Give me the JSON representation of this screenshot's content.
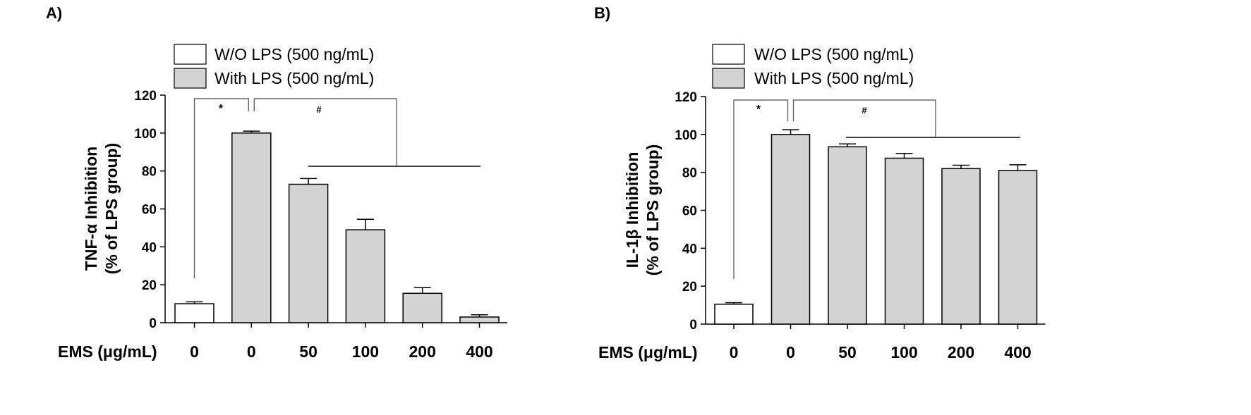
{
  "figure": {
    "panels": [
      {
        "label": "A)",
        "ylabel_line1": "TNF-α Inhibition",
        "ylabel_line2": "(% of LPS group)",
        "xaxis_title": "EMS (μg/mL)",
        "sig_left": "*",
        "sig_right": "#",
        "legend": [
          "W/O LPS (500 ng/mL)",
          "With LPS (500 ng/mL)"
        ]
      },
      {
        "label": "B)",
        "ylabel_line1": "IL-1β Inhibition",
        "ylabel_line2": "(% of LPS group)",
        "xaxis_title": "EMS (μg/mL)",
        "sig_left": "*",
        "sig_right": "#",
        "legend": [
          "W/O LPS (500 ng/mL)",
          "With LPS (500 ng/mL)"
        ]
      }
    ]
  },
  "colors": {
    "without_lps": "#ffffff",
    "with_lps": "#d3d3d3",
    "stroke": "#000000"
  },
  "chart_data": [
    {
      "type": "bar",
      "ylabel": "TNF-α Inhibition (% of LPS group)",
      "xlabel": "EMS (μg/mL)",
      "categories": [
        "0",
        "0",
        "50",
        "100",
        "200",
        "400"
      ],
      "groups": [
        "W/O LPS (500 ng/mL)",
        "With LPS (500 ng/mL)",
        "With LPS (500 ng/mL)",
        "With LPS (500 ng/mL)",
        "With LPS (500 ng/mL)",
        "With LPS (500 ng/mL)"
      ],
      "values": [
        10,
        100,
        73,
        49,
        15.5,
        3
      ],
      "errors": [
        1,
        1,
        3,
        5.5,
        3,
        1.2
      ],
      "ylim": [
        0,
        120
      ],
      "yticks": [
        0,
        20,
        40,
        60,
        80,
        100,
        120
      ],
      "series": [
        {
          "name": "W/O LPS (500 ng/mL)",
          "values": [
            10,
            null,
            null,
            null,
            null,
            null
          ]
        },
        {
          "name": "With LPS (500 ng/mL)",
          "values": [
            null,
            100,
            73,
            49,
            15.5,
            3
          ]
        }
      ],
      "legend_position": "top",
      "grid": false,
      "annotations": [
        "*",
        "#"
      ]
    },
    {
      "type": "bar",
      "ylabel": "IL-1β Inhibition (% of LPS group)",
      "xlabel": "EMS (μg/mL)",
      "categories": [
        "0",
        "0",
        "50",
        "100",
        "200",
        "400"
      ],
      "groups": [
        "W/O LPS (500 ng/mL)",
        "With LPS (500 ng/mL)",
        "With LPS (500 ng/mL)",
        "With LPS (500 ng/mL)",
        "With LPS (500 ng/mL)",
        "With LPS (500 ng/mL)"
      ],
      "values": [
        10.5,
        100,
        93.5,
        87.5,
        82,
        81
      ],
      "errors": [
        0.8,
        2.5,
        1.5,
        2.5,
        1.8,
        3
      ],
      "ylim": [
        0,
        120
      ],
      "yticks": [
        0,
        20,
        40,
        60,
        80,
        100,
        120
      ],
      "series": [
        {
          "name": "W/O LPS (500 ng/mL)",
          "values": [
            10.5,
            null,
            null,
            null,
            null,
            null
          ]
        },
        {
          "name": "With LPS (500 ng/mL)",
          "values": [
            null,
            100,
            93.5,
            87.5,
            82,
            81
          ]
        }
      ],
      "legend_position": "top",
      "grid": false,
      "annotations": [
        "*",
        "#"
      ]
    }
  ]
}
